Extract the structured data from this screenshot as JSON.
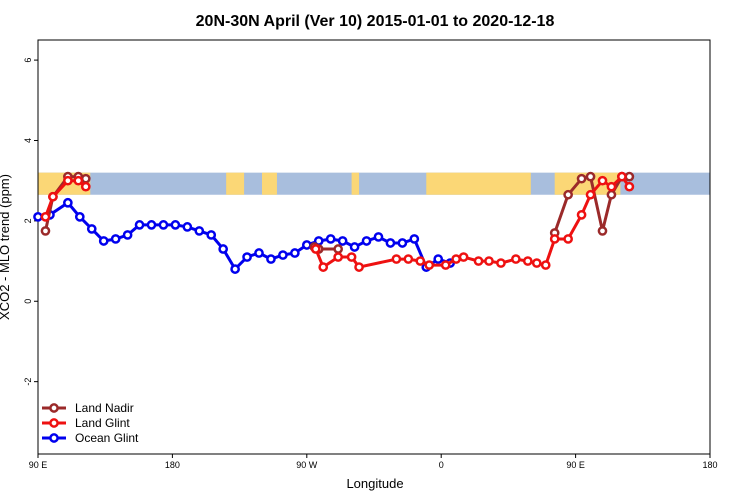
{
  "chart_data": {
    "type": "line",
    "title": "20N-30N April (Ver 10)   2015-01-01 to 2020-12-18",
    "xlabel": "Longitude",
    "ylabel": "XCO2 - MLO trend (ppm)",
    "xlim": [
      90,
      450
    ],
    "ylim": [
      -3.8,
      6.5
    ],
    "x_ticks": [
      {
        "value": 90,
        "label": "90 E"
      },
      {
        "value": 180,
        "label": "180"
      },
      {
        "value": 270,
        "label": "90 W"
      },
      {
        "value": 360,
        "label": "0"
      },
      {
        "value": 450,
        "label": "90 E"
      },
      {
        "value": 540,
        "label": "180"
      }
    ],
    "y_ticks": [
      {
        "value": -2,
        "label": "-2"
      },
      {
        "value": 0,
        "label": "0"
      },
      {
        "value": 2,
        "label": "2"
      },
      {
        "value": 4,
        "label": "4"
      },
      {
        "value": 6,
        "label": "6"
      }
    ],
    "map_strip": {
      "y_range": [
        2.65,
        3.2
      ],
      "ocean_color": "#a8bedd",
      "land_color": "#fbd776",
      "land_spans": [
        [
          90,
          125
        ],
        [
          216,
          228
        ],
        [
          240,
          250
        ],
        [
          300,
          305
        ],
        [
          350,
          420
        ],
        [
          436,
          480
        ]
      ]
    },
    "legend_position": "bottom-left",
    "series": [
      {
        "name": "Land Nadir",
        "color": "#9b2a2a",
        "x": [
          95,
          100,
          110,
          117,
          122,
          275,
          278,
          291,
          436,
          445,
          454,
          460,
          468,
          474,
          481,
          486
        ],
        "y": [
          1.75,
          2.6,
          3.1,
          3.1,
          3.05,
          1.35,
          1.3,
          1.3,
          1.7,
          2.65,
          3.05,
          3.1,
          1.75,
          2.65,
          3.1,
          3.1
        ]
      },
      {
        "name": "Land Glint",
        "color": "#ee1111",
        "x": [
          95,
          100,
          110,
          117,
          122,
          276,
          281,
          291,
          300,
          305,
          330,
          338,
          346,
          352,
          363,
          370,
          375,
          385,
          392,
          400,
          410,
          418,
          424,
          430,
          436,
          445,
          454,
          460,
          468,
          474,
          481,
          486
        ],
        "y": [
          2.1,
          2.6,
          3.0,
          3.0,
          2.85,
          1.3,
          0.85,
          1.1,
          1.1,
          0.85,
          1.05,
          1.05,
          1.0,
          0.9,
          0.9,
          1.05,
          1.1,
          1.0,
          1.0,
          0.95,
          1.05,
          1.0,
          0.95,
          0.9,
          1.55,
          1.55,
          2.15,
          2.65,
          3.0,
          2.85,
          3.1,
          2.85
        ],
        "note_hidden": false
      },
      {
        "name": "Ocean Glint",
        "color": "#0000ee",
        "x": [
          90,
          98,
          110,
          118,
          126,
          134,
          142,
          150,
          158,
          166,
          174,
          182,
          190,
          198,
          206,
          214,
          222,
          230,
          238,
          246,
          254,
          262,
          270,
          278,
          286,
          294,
          302,
          310,
          318,
          326,
          334,
          342,
          350,
          358,
          366
        ],
        "y": [
          2.1,
          2.15,
          2.45,
          2.1,
          1.8,
          1.5,
          1.55,
          1.65,
          1.9,
          1.9,
          1.9,
          1.9,
          1.85,
          1.75,
          1.65,
          1.3,
          0.8,
          1.1,
          1.2,
          1.05,
          1.15,
          1.2,
          1.4,
          1.5,
          1.55,
          1.5,
          1.35,
          1.5,
          1.6,
          1.45,
          1.45,
          1.55,
          0.85,
          1.05,
          0.95
        ]
      }
    ]
  }
}
